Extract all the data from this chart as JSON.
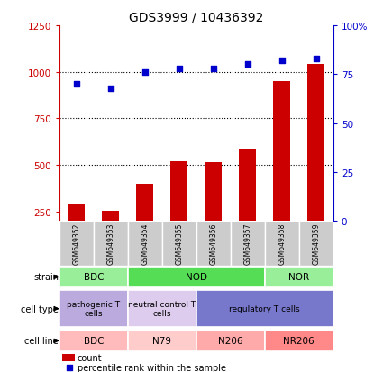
{
  "title": "GDS3999 / 10436392",
  "samples": [
    "GSM649352",
    "GSM649353",
    "GSM649354",
    "GSM649355",
    "GSM649356",
    "GSM649357",
    "GSM649358",
    "GSM649359"
  ],
  "counts": [
    295,
    255,
    400,
    520,
    515,
    590,
    950,
    1040
  ],
  "pct_values": [
    70,
    68,
    76,
    78,
    78,
    80,
    82,
    83
  ],
  "count_color": "#CC0000",
  "percentile_color": "#0000CC",
  "ylim_left": [
    200,
    1250
  ],
  "ylim_right": [
    0,
    100
  ],
  "yticks_left": [
    250,
    500,
    750,
    1000,
    1250
  ],
  "yticks_right": [
    0,
    25,
    50,
    75,
    100
  ],
  "ytick_labels_right": [
    "0",
    "25",
    "50",
    "75",
    "100%"
  ],
  "grid_values": [
    500,
    750,
    1000
  ],
  "strain_groups": [
    {
      "label": "BDC",
      "start": 0,
      "end": 2,
      "color": "#99EE99"
    },
    {
      "label": "NOD",
      "start": 2,
      "end": 6,
      "color": "#55DD55"
    },
    {
      "label": "NOR",
      "start": 6,
      "end": 8,
      "color": "#99EE99"
    }
  ],
  "celltype_groups": [
    {
      "label": "pathogenic T\ncells",
      "start": 0,
      "end": 2,
      "color": "#BBAADD"
    },
    {
      "label": "neutral control T\ncells",
      "start": 2,
      "end": 4,
      "color": "#DDCCEE"
    },
    {
      "label": "regulatory T cells",
      "start": 4,
      "end": 8,
      "color": "#7777CC"
    }
  ],
  "cellline_groups": [
    {
      "label": "BDC",
      "start": 0,
      "end": 2,
      "color": "#FFBBBB"
    },
    {
      "label": "N79",
      "start": 2,
      "end": 4,
      "color": "#FFCCCC"
    },
    {
      "label": "N206",
      "start": 4,
      "end": 6,
      "color": "#FFAAAA"
    },
    {
      "label": "NR206",
      "start": 6,
      "end": 8,
      "color": "#FF8888"
    }
  ],
  "sample_box_color": "#CCCCCC",
  "legend_count_label": "count",
  "legend_pct_label": "percentile rank within the sample"
}
